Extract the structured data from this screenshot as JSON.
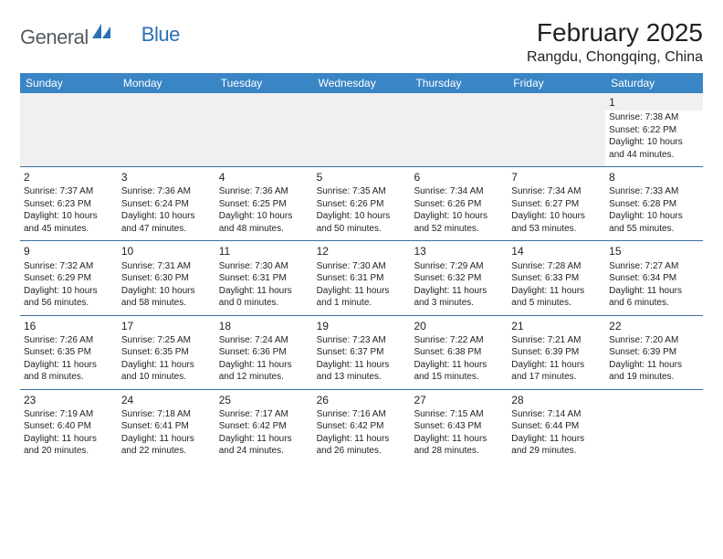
{
  "logo": {
    "part1": "General",
    "part2": "Blue"
  },
  "title": "February 2025",
  "location": "Rangdu, Chongqing, China",
  "colors": {
    "header_bg": "#3a85c6",
    "header_text": "#ffffff",
    "row_border": "#3a6fa0",
    "shaded_bg": "#f0f0f0",
    "text": "#222222",
    "logo_gray": "#555b60",
    "logo_blue": "#2a6fb5"
  },
  "day_headers": [
    "Sunday",
    "Monday",
    "Tuesday",
    "Wednesday",
    "Thursday",
    "Friday",
    "Saturday"
  ],
  "weeks": [
    [
      {
        "blank": true,
        "shaded": true
      },
      {
        "blank": true,
        "shaded": true
      },
      {
        "blank": true,
        "shaded": true
      },
      {
        "blank": true,
        "shaded": true
      },
      {
        "blank": true,
        "shaded": true
      },
      {
        "blank": true,
        "shaded": true
      },
      {
        "day": "1",
        "shaded_num": true,
        "sunrise": "Sunrise: 7:38 AM",
        "sunset": "Sunset: 6:22 PM",
        "daylight1": "Daylight: 10 hours",
        "daylight2": "and 44 minutes."
      }
    ],
    [
      {
        "day": "2",
        "sunrise": "Sunrise: 7:37 AM",
        "sunset": "Sunset: 6:23 PM",
        "daylight1": "Daylight: 10 hours",
        "daylight2": "and 45 minutes."
      },
      {
        "day": "3",
        "sunrise": "Sunrise: 7:36 AM",
        "sunset": "Sunset: 6:24 PM",
        "daylight1": "Daylight: 10 hours",
        "daylight2": "and 47 minutes."
      },
      {
        "day": "4",
        "sunrise": "Sunrise: 7:36 AM",
        "sunset": "Sunset: 6:25 PM",
        "daylight1": "Daylight: 10 hours",
        "daylight2": "and 48 minutes."
      },
      {
        "day": "5",
        "sunrise": "Sunrise: 7:35 AM",
        "sunset": "Sunset: 6:26 PM",
        "daylight1": "Daylight: 10 hours",
        "daylight2": "and 50 minutes."
      },
      {
        "day": "6",
        "sunrise": "Sunrise: 7:34 AM",
        "sunset": "Sunset: 6:26 PM",
        "daylight1": "Daylight: 10 hours",
        "daylight2": "and 52 minutes."
      },
      {
        "day": "7",
        "sunrise": "Sunrise: 7:34 AM",
        "sunset": "Sunset: 6:27 PM",
        "daylight1": "Daylight: 10 hours",
        "daylight2": "and 53 minutes."
      },
      {
        "day": "8",
        "sunrise": "Sunrise: 7:33 AM",
        "sunset": "Sunset: 6:28 PM",
        "daylight1": "Daylight: 10 hours",
        "daylight2": "and 55 minutes."
      }
    ],
    [
      {
        "day": "9",
        "sunrise": "Sunrise: 7:32 AM",
        "sunset": "Sunset: 6:29 PM",
        "daylight1": "Daylight: 10 hours",
        "daylight2": "and 56 minutes."
      },
      {
        "day": "10",
        "sunrise": "Sunrise: 7:31 AM",
        "sunset": "Sunset: 6:30 PM",
        "daylight1": "Daylight: 10 hours",
        "daylight2": "and 58 minutes."
      },
      {
        "day": "11",
        "sunrise": "Sunrise: 7:30 AM",
        "sunset": "Sunset: 6:31 PM",
        "daylight1": "Daylight: 11 hours",
        "daylight2": "and 0 minutes."
      },
      {
        "day": "12",
        "sunrise": "Sunrise: 7:30 AM",
        "sunset": "Sunset: 6:31 PM",
        "daylight1": "Daylight: 11 hours",
        "daylight2": "and 1 minute."
      },
      {
        "day": "13",
        "sunrise": "Sunrise: 7:29 AM",
        "sunset": "Sunset: 6:32 PM",
        "daylight1": "Daylight: 11 hours",
        "daylight2": "and 3 minutes."
      },
      {
        "day": "14",
        "sunrise": "Sunrise: 7:28 AM",
        "sunset": "Sunset: 6:33 PM",
        "daylight1": "Daylight: 11 hours",
        "daylight2": "and 5 minutes."
      },
      {
        "day": "15",
        "sunrise": "Sunrise: 7:27 AM",
        "sunset": "Sunset: 6:34 PM",
        "daylight1": "Daylight: 11 hours",
        "daylight2": "and 6 minutes."
      }
    ],
    [
      {
        "day": "16",
        "sunrise": "Sunrise: 7:26 AM",
        "sunset": "Sunset: 6:35 PM",
        "daylight1": "Daylight: 11 hours",
        "daylight2": "and 8 minutes."
      },
      {
        "day": "17",
        "sunrise": "Sunrise: 7:25 AM",
        "sunset": "Sunset: 6:35 PM",
        "daylight1": "Daylight: 11 hours",
        "daylight2": "and 10 minutes."
      },
      {
        "day": "18",
        "sunrise": "Sunrise: 7:24 AM",
        "sunset": "Sunset: 6:36 PM",
        "daylight1": "Daylight: 11 hours",
        "daylight2": "and 12 minutes."
      },
      {
        "day": "19",
        "sunrise": "Sunrise: 7:23 AM",
        "sunset": "Sunset: 6:37 PM",
        "daylight1": "Daylight: 11 hours",
        "daylight2": "and 13 minutes."
      },
      {
        "day": "20",
        "sunrise": "Sunrise: 7:22 AM",
        "sunset": "Sunset: 6:38 PM",
        "daylight1": "Daylight: 11 hours",
        "daylight2": "and 15 minutes."
      },
      {
        "day": "21",
        "sunrise": "Sunrise: 7:21 AM",
        "sunset": "Sunset: 6:39 PM",
        "daylight1": "Daylight: 11 hours",
        "daylight2": "and 17 minutes."
      },
      {
        "day": "22",
        "sunrise": "Sunrise: 7:20 AM",
        "sunset": "Sunset: 6:39 PM",
        "daylight1": "Daylight: 11 hours",
        "daylight2": "and 19 minutes."
      }
    ],
    [
      {
        "day": "23",
        "sunrise": "Sunrise: 7:19 AM",
        "sunset": "Sunset: 6:40 PM",
        "daylight1": "Daylight: 11 hours",
        "daylight2": "and 20 minutes."
      },
      {
        "day": "24",
        "sunrise": "Sunrise: 7:18 AM",
        "sunset": "Sunset: 6:41 PM",
        "daylight1": "Daylight: 11 hours",
        "daylight2": "and 22 minutes."
      },
      {
        "day": "25",
        "sunrise": "Sunrise: 7:17 AM",
        "sunset": "Sunset: 6:42 PM",
        "daylight1": "Daylight: 11 hours",
        "daylight2": "and 24 minutes."
      },
      {
        "day": "26",
        "sunrise": "Sunrise: 7:16 AM",
        "sunset": "Sunset: 6:42 PM",
        "daylight1": "Daylight: 11 hours",
        "daylight2": "and 26 minutes."
      },
      {
        "day": "27",
        "sunrise": "Sunrise: 7:15 AM",
        "sunset": "Sunset: 6:43 PM",
        "daylight1": "Daylight: 11 hours",
        "daylight2": "and 28 minutes."
      },
      {
        "day": "28",
        "sunrise": "Sunrise: 7:14 AM",
        "sunset": "Sunset: 6:44 PM",
        "daylight1": "Daylight: 11 hours",
        "daylight2": "and 29 minutes."
      },
      {
        "blank": true
      }
    ]
  ]
}
